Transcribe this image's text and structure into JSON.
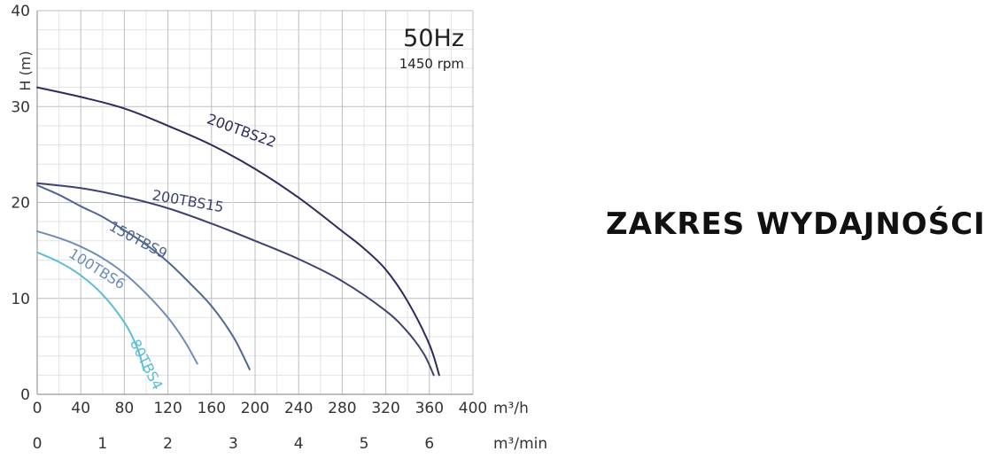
{
  "heading": "ZAKRES WYDAJNOŚCI",
  "chart_data": {
    "type": "line",
    "title": "50Hz",
    "subtitle": "1450 rpm",
    "xlabel": "m³/h",
    "x2label": "m³/min",
    "ylabel": "H (m)",
    "xlim": [
      0,
      400
    ],
    "ylim": [
      0,
      40
    ],
    "x_ticks": [
      "0",
      "40",
      "80",
      "120",
      "160",
      "200",
      "240",
      "280",
      "320",
      "360",
      "400"
    ],
    "x2_ticks": [
      "0",
      "1",
      "2",
      "3",
      "4",
      "5",
      "6"
    ],
    "y_ticks": [
      "0",
      "10",
      "20",
      "30",
      "40"
    ],
    "grid": true,
    "series": [
      {
        "name": "200TBS22",
        "color": "#2e2c5e",
        "points": [
          [
            0,
            32
          ],
          [
            40,
            31
          ],
          [
            80,
            29.8
          ],
          [
            120,
            28
          ],
          [
            160,
            26
          ],
          [
            200,
            23.5
          ],
          [
            240,
            20.5
          ],
          [
            280,
            17
          ],
          [
            300,
            15.2
          ],
          [
            320,
            13
          ],
          [
            340,
            9.7
          ],
          [
            360,
            5.2
          ],
          [
            369,
            2
          ]
        ]
      },
      {
        "name": "200TBS15",
        "color": "#3d4272",
        "points": [
          [
            0,
            22
          ],
          [
            40,
            21.5
          ],
          [
            80,
            20.6
          ],
          [
            120,
            19.4
          ],
          [
            160,
            17.8
          ],
          [
            200,
            16
          ],
          [
            240,
            14.1
          ],
          [
            280,
            11.8
          ],
          [
            320,
            8.7
          ],
          [
            340,
            6.5
          ],
          [
            355,
            4.2
          ],
          [
            364,
            2
          ]
        ]
      },
      {
        "name": "150TBS9",
        "color": "#4f6690",
        "points": [
          [
            0,
            21.8
          ],
          [
            20,
            20.8
          ],
          [
            40,
            19.6
          ],
          [
            60,
            18.5
          ],
          [
            80,
            17.1
          ],
          [
            100,
            15.6
          ],
          [
            120,
            13.8
          ],
          [
            140,
            11.6
          ],
          [
            160,
            9.2
          ],
          [
            180,
            6
          ],
          [
            195,
            2.6
          ]
        ]
      },
      {
        "name": "100TBS6",
        "color": "#6d8fb6",
        "points": [
          [
            0,
            17
          ],
          [
            20,
            16.3
          ],
          [
            40,
            15.4
          ],
          [
            60,
            14.2
          ],
          [
            80,
            12.6
          ],
          [
            100,
            10.5
          ],
          [
            120,
            8
          ],
          [
            135,
            5.6
          ],
          [
            147,
            3.2
          ]
        ]
      },
      {
        "name": "80TBS4",
        "color": "#5bbfd6",
        "points": [
          [
            0,
            14.8
          ],
          [
            20,
            13.8
          ],
          [
            40,
            12.4
          ],
          [
            60,
            10.4
          ],
          [
            80,
            7.5
          ],
          [
            92,
            4.8
          ],
          [
            98,
            2.5
          ]
        ]
      }
    ]
  }
}
